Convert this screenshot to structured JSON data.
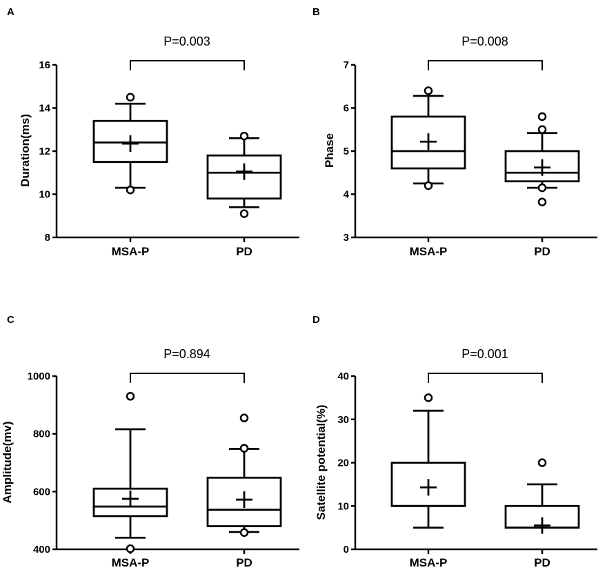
{
  "chart_data": [
    {
      "panel": "A",
      "type": "box",
      "ylabel": "Duration(ms)",
      "ylim": [
        8,
        16
      ],
      "yticks": [
        8,
        10,
        12,
        14,
        16
      ],
      "categories": [
        "MSA-P",
        "PD"
      ],
      "p_value": "P=0.003",
      "boxes": [
        {
          "name": "MSA-P",
          "whisker_low": 10.3,
          "q1": 11.5,
          "median": 12.4,
          "q3": 13.4,
          "whisker_high": 14.2,
          "mean": 12.35,
          "outliers": [
            10.2,
            14.5
          ]
        },
        {
          "name": "PD",
          "whisker_low": 9.4,
          "q1": 9.8,
          "median": 11.0,
          "q3": 11.8,
          "whisker_high": 12.6,
          "mean": 11.05,
          "outliers": [
            9.1,
            12.7
          ]
        }
      ]
    },
    {
      "panel": "B",
      "type": "box",
      "ylabel": "Phase",
      "ylim": [
        3,
        7
      ],
      "yticks": [
        3,
        4,
        5,
        6,
        7
      ],
      "categories": [
        "MSA-P",
        "PD"
      ],
      "p_value": "P=0.008",
      "boxes": [
        {
          "name": "MSA-P",
          "whisker_low": 4.25,
          "q1": 4.6,
          "median": 5.0,
          "q3": 5.8,
          "whisker_high": 6.28,
          "mean": 5.22,
          "outliers": [
            4.2,
            6.4
          ]
        },
        {
          "name": "PD",
          "whisker_low": 4.15,
          "q1": 4.3,
          "median": 4.5,
          "q3": 5.0,
          "whisker_high": 5.42,
          "mean": 4.62,
          "outliers": [
            3.82,
            4.15,
            5.5,
            5.8
          ]
        }
      ]
    },
    {
      "panel": "C",
      "type": "box",
      "ylabel": "Amplitude(mv)",
      "ylim": [
        400,
        1000
      ],
      "yticks": [
        400,
        600,
        800,
        1000
      ],
      "categories": [
        "MSA-P",
        "PD"
      ],
      "p_value": "P=0.894",
      "boxes": [
        {
          "name": "MSA-P",
          "whisker_low": 440,
          "q1": 515,
          "median": 548,
          "q3": 610,
          "whisker_high": 816,
          "mean": 575,
          "outliers": [
            402,
            930
          ]
        },
        {
          "name": "PD",
          "whisker_low": 460,
          "q1": 480,
          "median": 537,
          "q3": 648,
          "whisker_high": 748,
          "mean": 572,
          "outliers": [
            458,
            750,
            855
          ]
        }
      ]
    },
    {
      "panel": "D",
      "type": "box",
      "ylabel": "Satellite potential(%)",
      "ylim": [
        0,
        40
      ],
      "yticks": [
        0,
        10,
        20,
        30,
        40
      ],
      "categories": [
        "MSA-P",
        "PD"
      ],
      "p_value": "P=0.001",
      "boxes": [
        {
          "name": "MSA-P",
          "whisker_low": 5,
          "q1": 10,
          "median": 10,
          "q3": 20,
          "whisker_high": 32,
          "mean": 14.3,
          "outliers": [
            35
          ]
        },
        {
          "name": "PD",
          "whisker_low": 5,
          "q1": 5,
          "median": 5,
          "q3": 10,
          "whisker_high": 15,
          "mean": 5.5,
          "outliers": [
            20
          ]
        }
      ]
    }
  ]
}
